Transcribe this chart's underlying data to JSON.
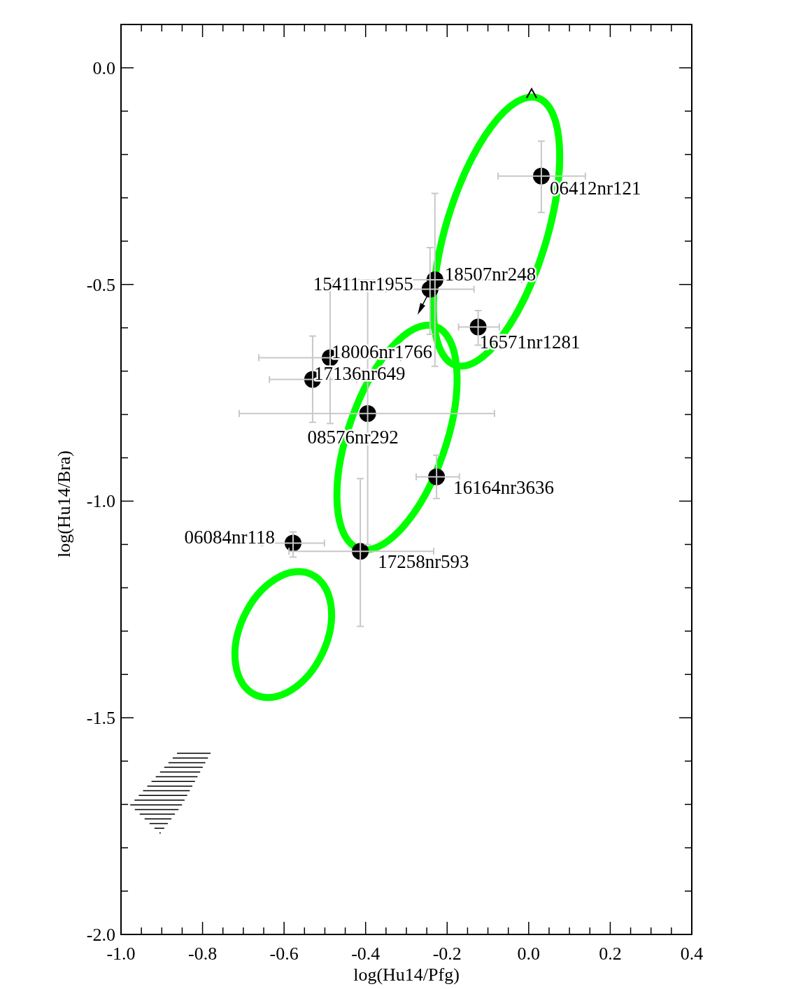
{
  "chart_data": {
    "type": "scatter",
    "xlabel": "log(Hu14/Pfg)",
    "ylabel": "log(Hu14/Bra)",
    "xlim": [
      -1.0,
      0.4
    ],
    "ylim": [
      -2.0,
      0.1
    ],
    "xticks": [
      {
        "value": -1.0,
        "label": "-1.0"
      },
      {
        "value": -0.95,
        "label": null
      },
      {
        "value": -0.9,
        "label": null
      },
      {
        "value": -0.85,
        "label": null
      },
      {
        "value": -0.8,
        "label": "-0.8"
      },
      {
        "value": -0.75,
        "label": null
      },
      {
        "value": -0.7,
        "label": null
      },
      {
        "value": -0.65,
        "label": null
      },
      {
        "value": -0.6,
        "label": "-0.6"
      },
      {
        "value": -0.55,
        "label": null
      },
      {
        "value": -0.5,
        "label": null
      },
      {
        "value": -0.45,
        "label": null
      },
      {
        "value": -0.4,
        "label": "-0.4"
      },
      {
        "value": -0.35,
        "label": null
      },
      {
        "value": -0.3,
        "label": null
      },
      {
        "value": -0.25,
        "label": null
      },
      {
        "value": -0.2,
        "label": "-0.2"
      },
      {
        "value": -0.15,
        "label": null
      },
      {
        "value": -0.1,
        "label": null
      },
      {
        "value": -0.05,
        "label": null
      },
      {
        "value": 0.0,
        "label": "0.0"
      },
      {
        "value": 0.05,
        "label": null
      },
      {
        "value": 0.1,
        "label": null
      },
      {
        "value": 0.15,
        "label": null
      },
      {
        "value": 0.2,
        "label": "0.2"
      },
      {
        "value": 0.25,
        "label": null
      },
      {
        "value": 0.3,
        "label": null
      },
      {
        "value": 0.35,
        "label": null
      },
      {
        "value": 0.4,
        "label": "0.4"
      }
    ],
    "yticks": [
      {
        "value": 0.0,
        "label": "0.0"
      },
      {
        "value": -0.1,
        "label": null
      },
      {
        "value": -0.2,
        "label": null
      },
      {
        "value": -0.3,
        "label": null
      },
      {
        "value": -0.4,
        "label": null
      },
      {
        "value": -0.5,
        "label": "-0.5"
      },
      {
        "value": -0.6,
        "label": null
      },
      {
        "value": -0.7,
        "label": null
      },
      {
        "value": -0.8,
        "label": null
      },
      {
        "value": -0.9,
        "label": null
      },
      {
        "value": -1.0,
        "label": "-1.0"
      },
      {
        "value": -1.1,
        "label": null
      },
      {
        "value": -1.2,
        "label": null
      },
      {
        "value": -1.3,
        "label": null
      },
      {
        "value": -1.4,
        "label": null
      },
      {
        "value": -1.5,
        "label": "-1.5"
      },
      {
        "value": -1.6,
        "label": null
      },
      {
        "value": -1.7,
        "label": null
      },
      {
        "value": -1.8,
        "label": null
      },
      {
        "value": -1.9,
        "label": null
      },
      {
        "value": -2.0,
        "label": "-2.0"
      }
    ],
    "marker": "circle",
    "series": [
      {
        "color": "#000000",
        "x": [
          0.031,
          -0.23,
          -0.242,
          -0.124,
          -0.487,
          -0.53,
          -0.395,
          -0.226,
          -0.578,
          -0.413
        ],
        "values": [
          -0.25,
          -0.489,
          -0.511,
          -0.598,
          -0.669,
          -0.719,
          -0.798,
          -0.944,
          -1.097,
          -1.116
        ],
        "xerrors": [
          [
            -0.075,
            0.139
          ],
          [
            -0.443,
            -0.017
          ],
          [
            -0.35,
            -0.134
          ],
          [
            -0.172,
            -0.072
          ],
          [
            -0.662,
            -0.314
          ],
          [
            -0.636,
            -0.422
          ],
          [
            -0.71,
            -0.084
          ],
          [
            -0.276,
            -0.17
          ],
          [
            -0.654,
            -0.501
          ],
          [
            -0.588,
            -0.233
          ]
        ],
        "errors": [
          [
            -0.334,
            -0.169
          ],
          [
            -0.689,
            -0.29
          ],
          [
            -0.615,
            -0.415
          ],
          [
            -0.64,
            -0.56
          ],
          [
            -0.821,
            -0.49
          ],
          [
            -0.818,
            -0.619
          ],
          [
            -1.1,
            -0.511
          ],
          [
            -0.994,
            -0.894
          ],
          [
            -1.129,
            -1.071
          ],
          [
            -1.289,
            -0.948
          ]
        ]
      }
    ],
    "annotations": [
      {
        "text": "06412nr121",
        "x": 0.031,
        "y": -0.25
      },
      {
        "text": "18507nr248",
        "x": -0.23,
        "y": -0.489
      },
      {
        "text": "15411nr1955",
        "x": -0.242,
        "y": -0.511
      },
      {
        "text": "16571nr1281",
        "x": -0.124,
        "y": -0.598
      },
      {
        "text": "18006nr1766",
        "x": -0.487,
        "y": -0.669
      },
      {
        "text": "17136nr649",
        "x": -0.53,
        "y": -0.719
      },
      {
        "text": "08576nr292",
        "x": -0.395,
        "y": -0.798
      },
      {
        "text": "16164nr3636",
        "x": -0.226,
        "y": -0.944
      },
      {
        "text": "06084nr118",
        "x": -0.578,
        "y": -1.097
      },
      {
        "text": "17258nr593",
        "x": -0.413,
        "y": -1.116
      }
    ]
  }
}
